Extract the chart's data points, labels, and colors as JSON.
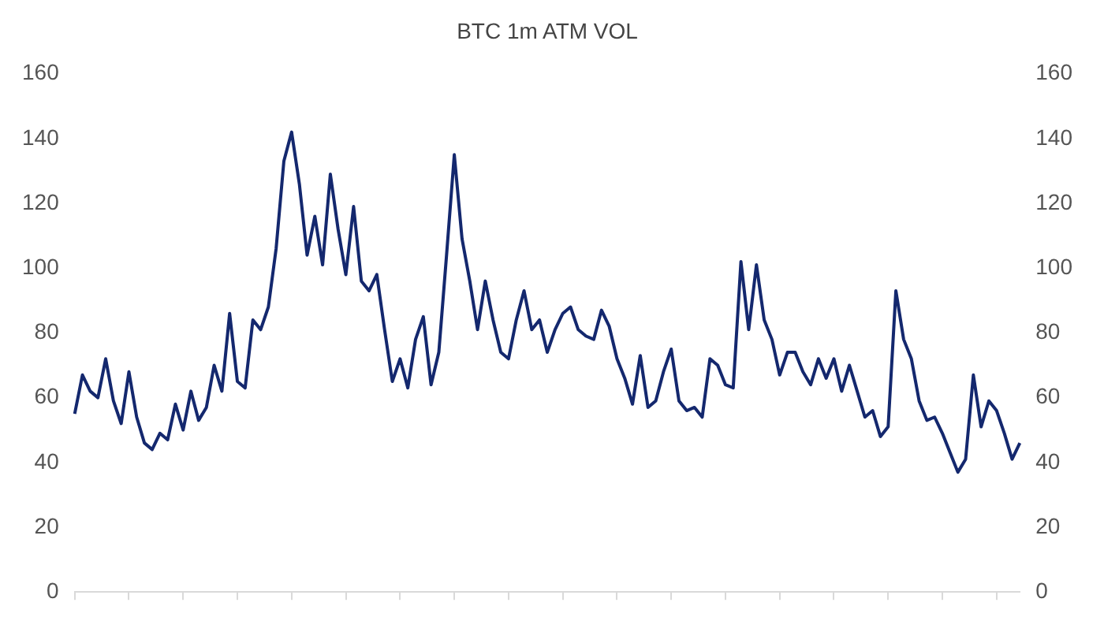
{
  "chart_data": {
    "type": "line",
    "title": "BTC 1m ATM VOL",
    "categories": [
      null,
      null,
      null,
      null,
      null,
      null,
      null,
      null,
      null,
      null,
      null,
      null,
      null,
      null,
      null,
      null,
      null,
      null,
      null,
      null,
      null,
      null,
      null,
      null,
      null,
      null,
      null,
      null,
      null,
      null,
      null,
      null,
      null,
      null,
      null,
      null,
      null,
      null,
      null,
      null,
      null,
      null,
      null,
      null,
      null,
      null,
      null,
      null,
      null,
      null,
      null,
      null,
      null,
      null,
      null,
      null,
      null,
      null,
      null,
      null,
      null,
      null,
      null,
      null,
      null,
      null,
      null,
      null,
      null,
      null,
      null,
      null,
      null,
      null,
      null,
      null,
      null,
      null,
      null,
      null,
      null,
      null,
      null,
      null,
      null,
      null,
      null,
      null,
      null,
      null,
      null,
      null,
      null,
      null,
      null,
      null,
      null,
      null,
      null,
      null,
      null,
      null,
      null,
      null,
      null,
      null,
      null,
      null,
      null,
      null,
      null,
      null,
      null,
      null,
      null,
      null,
      null,
      null,
      null,
      null,
      null,
      null,
      null
    ],
    "series": [
      {
        "color": "#14286e",
        "values": [
          55,
          67,
          62,
          60,
          72,
          59,
          52,
          68,
          54,
          46,
          44,
          49,
          47,
          58,
          50,
          62,
          53,
          57,
          70,
          62,
          86,
          65,
          63,
          84,
          81,
          88,
          106,
          133,
          142,
          126,
          104,
          116,
          101,
          129,
          112,
          98,
          119,
          96,
          93,
          98,
          81,
          65,
          72,
          63,
          78,
          85,
          64,
          74,
          104,
          135,
          109,
          96,
          81,
          96,
          84,
          74,
          72,
          84,
          93,
          81,
          84,
          74,
          81,
          86,
          88,
          81,
          79,
          78,
          87,
          82,
          72,
          66,
          58,
          73,
          57,
          59,
          68,
          75,
          59,
          56,
          57,
          54,
          72,
          70,
          64,
          63,
          102,
          81,
          101,
          84,
          78,
          67,
          74,
          74,
          68,
          64,
          72,
          66,
          72,
          62,
          70,
          62,
          54,
          56,
          48,
          51,
          93,
          78,
          72,
          59,
          53,
          54,
          49,
          43,
          37,
          41,
          67,
          51,
          59,
          56,
          49,
          41,
          46
        ]
      }
    ],
    "ylim": [
      0,
      160
    ],
    "yticks": [
      0,
      20,
      40,
      60,
      80,
      100,
      120,
      140,
      160
    ],
    "y2lim": [
      0,
      160
    ],
    "y2ticks": [
      0,
      20,
      40,
      60,
      80,
      100,
      120,
      140,
      160
    ],
    "grid": false,
    "legend": false,
    "marker": "none",
    "line_style": "solid",
    "tick_labels": "y"
  }
}
